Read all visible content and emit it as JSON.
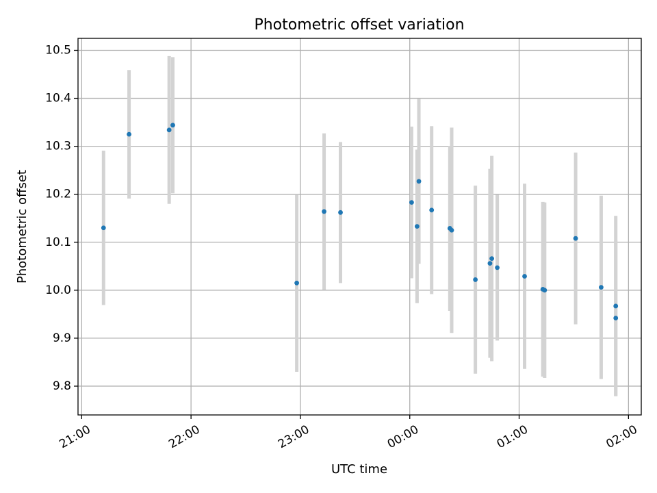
{
  "chart_data": {
    "type": "scatter",
    "title": "Photometric offset variation",
    "xlabel": "UTC time",
    "ylabel": "Photometric offset",
    "x_unit": "UTC hh:mm",
    "xlim": [
      "20:58",
      "02:07"
    ],
    "ylim": [
      9.74,
      10.525
    ],
    "x_ticks": [
      "21:00",
      "22:00",
      "23:00",
      "00:00",
      "01:00",
      "02:00"
    ],
    "y_ticks": [
      9.8,
      9.9,
      10.0,
      10.1,
      10.2,
      10.3,
      10.4,
      10.5
    ],
    "y_tick_labels": [
      "9.8",
      "9.9",
      "10.0",
      "10.1",
      "10.2",
      "10.3",
      "10.4",
      "10.5"
    ],
    "grid": true,
    "colors": {
      "points": "#1f77b4",
      "errorbars": "#d3d3d3"
    },
    "points": [
      {
        "x": "21:12",
        "y": 10.13,
        "err": 0.161
      },
      {
        "x": "21:26",
        "y": 10.325,
        "err": 0.134
      },
      {
        "x": "21:48",
        "y": 10.334,
        "err": 0.154
      },
      {
        "x": "21:50",
        "y": 10.344,
        "err": 0.142
      },
      {
        "x": "22:58",
        "y": 10.015,
        "err": 0.185
      },
      {
        "x": "23:13",
        "y": 10.164,
        "err": 0.163
      },
      {
        "x": "23:22",
        "y": 10.162,
        "err": 0.147
      },
      {
        "x": "00:01",
        "y": 10.183,
        "err": 0.158
      },
      {
        "x": "00:04",
        "y": 10.133,
        "err": 0.16
      },
      {
        "x": "00:05",
        "y": 10.227,
        "err": 0.172
      },
      {
        "x": "00:12",
        "y": 10.167,
        "err": 0.175
      },
      {
        "x": "00:22",
        "y": 10.129,
        "err": 0.172
      },
      {
        "x": "00:23",
        "y": 10.125,
        "err": 0.214
      },
      {
        "x": "00:36",
        "y": 10.022,
        "err": 0.196
      },
      {
        "x": "00:44",
        "y": 10.056,
        "err": 0.197
      },
      {
        "x": "00:45",
        "y": 10.066,
        "err": 0.214
      },
      {
        "x": "00:48",
        "y": 10.047,
        "err": 0.152
      },
      {
        "x": "01:03",
        "y": 10.029,
        "err": 0.193
      },
      {
        "x": "01:13",
        "y": 10.002,
        "err": 0.182
      },
      {
        "x": "01:14",
        "y": 10.0,
        "err": 0.183
      },
      {
        "x": "01:31",
        "y": 10.108,
        "err": 0.179
      },
      {
        "x": "01:45",
        "y": 10.006,
        "err": 0.191
      },
      {
        "x": "01:53",
        "y": 9.967,
        "err": 0.188
      },
      {
        "x": "01:53",
        "y": 9.942,
        "err": 0.162
      }
    ]
  }
}
